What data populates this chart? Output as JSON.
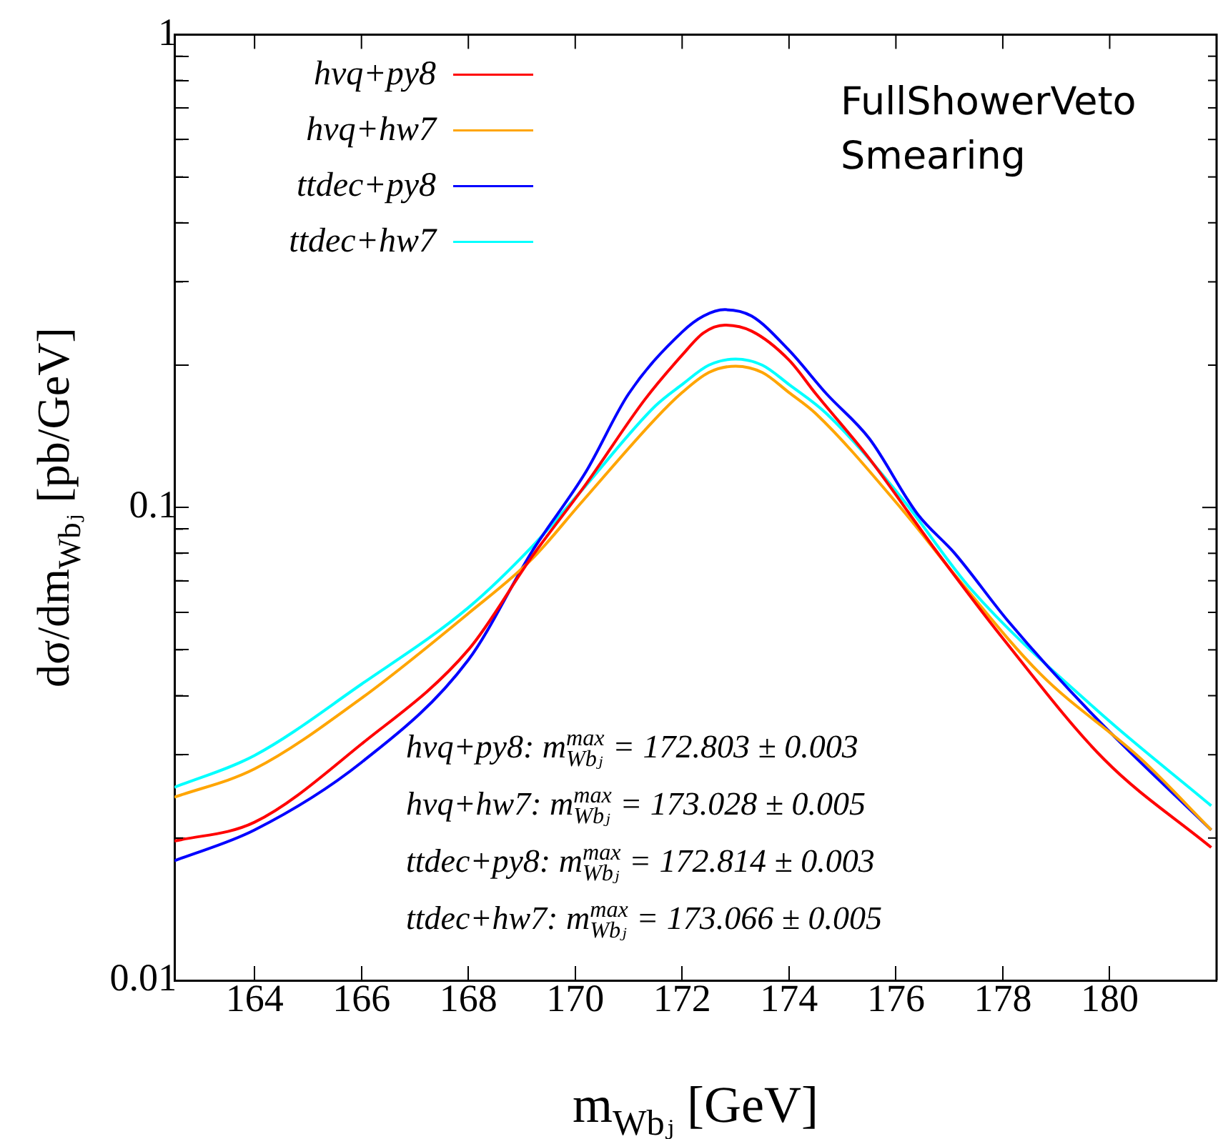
{
  "chart_data": {
    "type": "line",
    "xlabel": "m$_{Wbⱼ}$ [GeV]",
    "ylabel": "dσ/dm$_{Wbⱼ}$ [pb/GeV]",
    "annotations": [
      "FullShowerVeto",
      "Smearing",
      "hvq+py8: m$^{max}$$_{Wbⱼ}$ = 172.803 ± 0.003",
      "hvq+hw7: m$^{max}$$_{Wbⱼ}$ = 173.028 ± 0.005",
      "ttdec+py8: m$^{max}$$_{Wbⱼ}$ = 172.814 ± 0.003",
      "ttdec+hw7: m$^{max}$$_{Wbⱼ}$ = 173.066 ± 0.005"
    ],
    "series": [
      {
        "name": "hvq+py8",
        "color": "#ff0000",
        "x": [
          162.5,
          164,
          166,
          168,
          169.2,
          170.2,
          171.3,
          172,
          172.4,
          172.8,
          173.3,
          174,
          174.5,
          175.5,
          176.7,
          178,
          179.9,
          181.9
        ],
        "values": [
          0.0197,
          0.0216,
          0.0316,
          0.05,
          0.079,
          0.112,
          0.169,
          0.21,
          0.234,
          0.243,
          0.236,
          0.205,
          0.174,
          0.127,
          0.0825,
          0.0529,
          0.0293,
          0.0191
        ]
      },
      {
        "name": "hvq+hw7",
        "color": "#ffa500",
        "x": [
          162.5,
          164,
          166,
          168,
          169.2,
          170.1,
          171.5,
          172,
          172.5,
          173,
          173.5,
          174,
          174.5,
          176.1,
          177.1,
          178.7,
          180.6,
          181.9
        ],
        "values": [
          0.0244,
          0.028,
          0.0395,
          0.0597,
          0.078,
          0.102,
          0.154,
          0.175,
          0.193,
          0.199,
          0.193,
          0.175,
          0.158,
          0.0995,
          0.0721,
          0.0445,
          0.0293,
          0.0208
        ]
      },
      {
        "name": "ttdec+py8",
        "color": "#0000ff",
        "x": [
          162.5,
          164,
          166,
          168,
          169.2,
          170.2,
          171,
          172,
          172.4,
          172.8,
          173.3,
          174,
          174.7,
          175.5,
          176.4,
          177.1,
          178.1,
          179.7,
          181.9
        ],
        "values": [
          0.0179,
          0.0208,
          0.0289,
          0.0476,
          0.081,
          0.119,
          0.174,
          0.235,
          0.254,
          0.262,
          0.254,
          0.215,
          0.174,
          0.14,
          0.097,
          0.08,
          0.0575,
          0.0363,
          0.0208
        ]
      },
      {
        "name": "ttdec+hw7",
        "color": "#00ffff",
        "x": [
          162.5,
          164,
          166,
          168,
          169.2,
          170.1,
          171.5,
          172,
          172.5,
          173,
          173.5,
          174,
          174.7,
          176.1,
          177.4,
          179.7,
          181.9
        ],
        "values": [
          0.0256,
          0.0299,
          0.0423,
          0.0614,
          0.0828,
          0.108,
          0.164,
          0.182,
          0.2,
          0.206,
          0.2,
          0.182,
          0.158,
          0.105,
          0.0673,
          0.0378,
          0.0234
        ]
      }
    ],
    "xlim": [
      162.5,
      182
    ],
    "xticks": [
      164,
      166,
      168,
      170,
      172,
      174,
      176,
      178,
      180
    ],
    "ylim": [
      0.01,
      1
    ],
    "log": "y",
    "yticks": [
      0.01,
      {
        "value": 0.02,
        "label": null
      },
      {
        "value": 0.03,
        "label": null
      },
      {
        "value": 0.04,
        "label": null
      },
      {
        "value": 0.05,
        "label": null
      },
      {
        "value": 0.06,
        "label": null
      },
      {
        "value": 0.07,
        "label": null
      },
      {
        "value": 0.08,
        "label": null
      },
      {
        "value": 0.09,
        "label": null
      },
      0.1,
      {
        "value": 0.2,
        "label": null
      },
      {
        "value": 0.3,
        "label": null
      },
      {
        "value": 0.4,
        "label": null
      },
      {
        "value": 0.5,
        "label": null
      },
      {
        "value": 0.6,
        "label": null
      },
      {
        "value": 0.7,
        "label": null
      },
      {
        "value": 0.8,
        "label": null
      },
      {
        "value": 0.9,
        "label": null
      },
      1
    ],
    "grid": false,
    "legend": "top left",
    "marker": "none",
    "line_style": "solid"
  }
}
